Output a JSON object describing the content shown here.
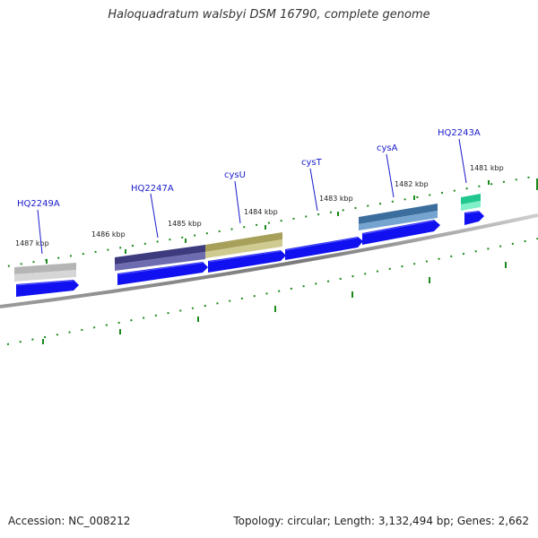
{
  "title": "Haloquadratum walsbyi DSM 16790, complete genome",
  "footer": {
    "accession": "Accession: NC_008212",
    "summary": "Topology: circular; Length: 3,132,494 bp; Genes: 2,662"
  },
  "ticks": [
    "1487 kbp",
    "1486 kbp",
    "1485 kbp",
    "1484 kbp",
    "1483 kbp",
    "1482 kbp",
    "1481 kbp"
  ],
  "genes": [
    {
      "name": "HQ2249A",
      "feature_color": "#a9a9a9"
    },
    {
      "name": "HQ2247A",
      "feature_color": "#4b4a8c"
    },
    {
      "name": "cysU",
      "feature_color": "#b2ac66"
    },
    {
      "name": "cysT",
      "feature_color": ""
    },
    {
      "name": "cysA",
      "feature_color": "#4a7fb0"
    },
    {
      "name": "HQ2243A",
      "feature_color": "#33d9a0"
    }
  ],
  "colors": {
    "cds_arrow": "#1010f0",
    "backbone": "#888888",
    "tick_mark": "#1a8a1a",
    "label_line": "#1a1acc",
    "gene_label": "#1a1acc"
  }
}
